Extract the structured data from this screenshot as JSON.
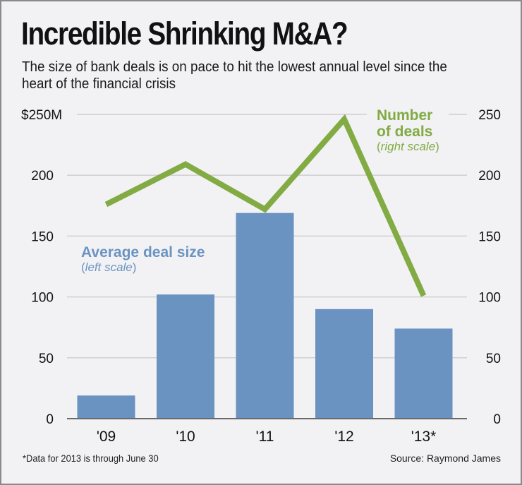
{
  "header": {
    "title": "Incredible Shrinking M&A?",
    "subtitle": "The size of bank deals is on pace to hit the lowest annual level since the heart of the financial crisis"
  },
  "legend": {
    "bars": {
      "name": "Average deal size",
      "open": "(",
      "scale": "left scale",
      "close": ")"
    },
    "line": {
      "name_line1": "Number",
      "name_line2": "of deals",
      "open": "(",
      "scale": "right scale",
      "close": ")"
    }
  },
  "footer": {
    "footnote": "*Data for 2013 is through June 30",
    "source": "Source: Raymond James"
  },
  "colors": {
    "bar": "#6b93c2",
    "line": "#82ab44",
    "grid": "#d0d0d4",
    "baseline": "#6a6a6a",
    "background": "#f2f2f4"
  },
  "chart_data": {
    "type": "bar",
    "title": "Incredible Shrinking M&A?",
    "subtitle": "The size of bank deals is on pace to hit the lowest annual level since the heart of the financial crisis",
    "categories": [
      "'09",
      "'10",
      "'11",
      "'12",
      "'13*"
    ],
    "series": [
      {
        "name": "Average deal size",
        "type": "bar",
        "axis": "left",
        "unit": "$M",
        "values": [
          19,
          102,
          169,
          90,
          74
        ]
      },
      {
        "name": "Number of deals",
        "type": "line",
        "axis": "right",
        "values": [
          176,
          209,
          172,
          246,
          101
        ]
      }
    ],
    "left_axis": {
      "ylim": [
        0,
        250
      ],
      "ticks": [
        "0",
        "50",
        "100",
        "150",
        "200",
        "$250M"
      ]
    },
    "right_axis": {
      "ylim": [
        0,
        250
      ],
      "ticks": [
        "0",
        "50",
        "100",
        "150",
        "200",
        "250"
      ]
    },
    "xlabel": "",
    "ylabel": "",
    "grid": true,
    "legend_placement": "inline"
  }
}
